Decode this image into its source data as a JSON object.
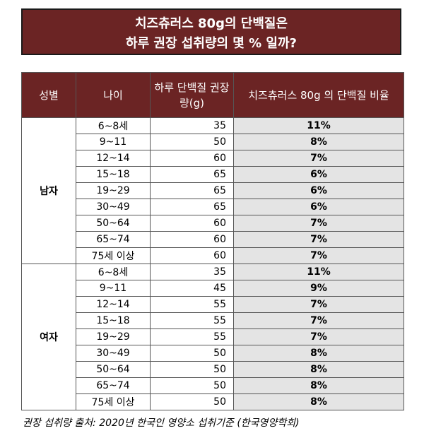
{
  "title": {
    "line1": "치즈츄러스 80g의 단백질은",
    "line2": "하루 권장 섭취량의 몇 % 일까?"
  },
  "headers": {
    "sex": "성별",
    "age": "나이",
    "recommended": "하루 단백질 권장량(g)",
    "percent": "치즈츄러스 80g 의 단백질 비율"
  },
  "groups": [
    {
      "sex": "남자",
      "rows": [
        {
          "age": "6~8세",
          "rec": "35",
          "pct": "11%"
        },
        {
          "age": "9~11",
          "rec": "50",
          "pct": "8%"
        },
        {
          "age": "12~14",
          "rec": "60",
          "pct": "7%"
        },
        {
          "age": "15~18",
          "rec": "65",
          "pct": "6%"
        },
        {
          "age": "19~29",
          "rec": "65",
          "pct": "6%"
        },
        {
          "age": "30~49",
          "rec": "65",
          "pct": "6%"
        },
        {
          "age": "50~64",
          "rec": "60",
          "pct": "7%"
        },
        {
          "age": "65~74",
          "rec": "60",
          "pct": "7%"
        },
        {
          "age": "75세 이상",
          "rec": "60",
          "pct": "7%"
        }
      ]
    },
    {
      "sex": "여자",
      "rows": [
        {
          "age": "6~8세",
          "rec": "35",
          "pct": "11%"
        },
        {
          "age": "9~11",
          "rec": "45",
          "pct": "9%"
        },
        {
          "age": "12~14",
          "rec": "55",
          "pct": "7%"
        },
        {
          "age": "15~18",
          "rec": "55",
          "pct": "7%"
        },
        {
          "age": "19~29",
          "rec": "55",
          "pct": "7%"
        },
        {
          "age": "30~49",
          "rec": "50",
          "pct": "8%"
        },
        {
          "age": "50~64",
          "rec": "50",
          "pct": "8%"
        },
        {
          "age": "65~74",
          "rec": "50",
          "pct": "8%"
        },
        {
          "age": "75세 이상",
          "rec": "50",
          "pct": "8%"
        }
      ]
    }
  ],
  "source": "권장 섭취량 출처: 2020년 한국인 영양소 섭취기준 (한국영양학회)",
  "colors": {
    "header_bg": "#6b2424",
    "percent_bg": "#e4e4e4"
  }
}
